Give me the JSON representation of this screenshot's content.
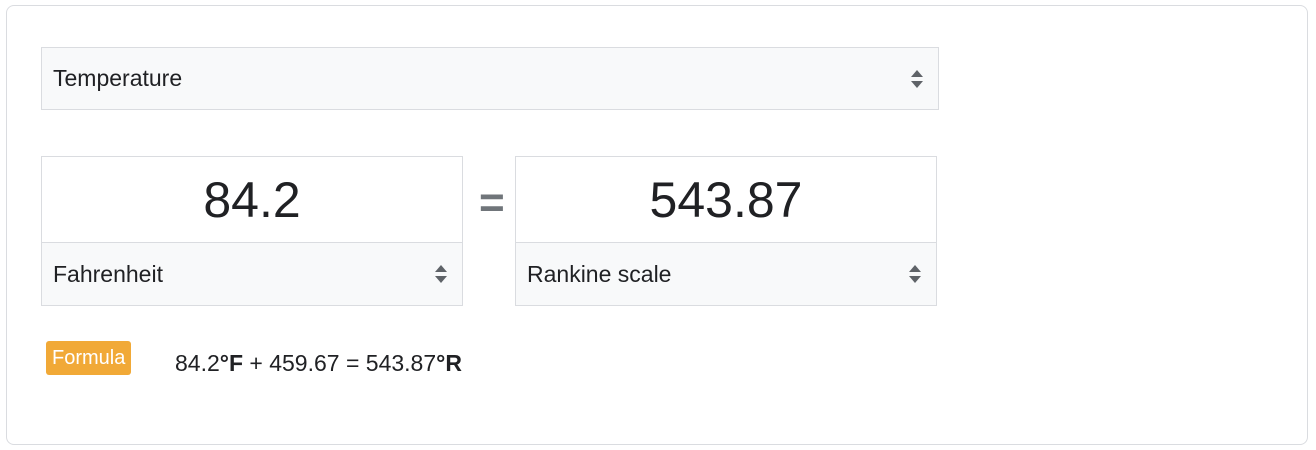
{
  "measure": {
    "selected": "Temperature"
  },
  "from": {
    "value": "84.2",
    "unit": "Fahrenheit"
  },
  "equals_sign": "=",
  "to": {
    "value": "543.87",
    "unit": "Rankine scale"
  },
  "formula": {
    "badge_label": "Formula",
    "left_value": "84.2",
    "left_unit": "°F",
    "operator_text": " + 459.67 = ",
    "right_value": "543.87",
    "right_unit": "°R"
  },
  "colors": {
    "badge": "#f1a937",
    "border": "#dadce0",
    "select_bg": "#f8f9fa"
  },
  "icons": {
    "select_arrows": "up-down-arrows-icon"
  }
}
